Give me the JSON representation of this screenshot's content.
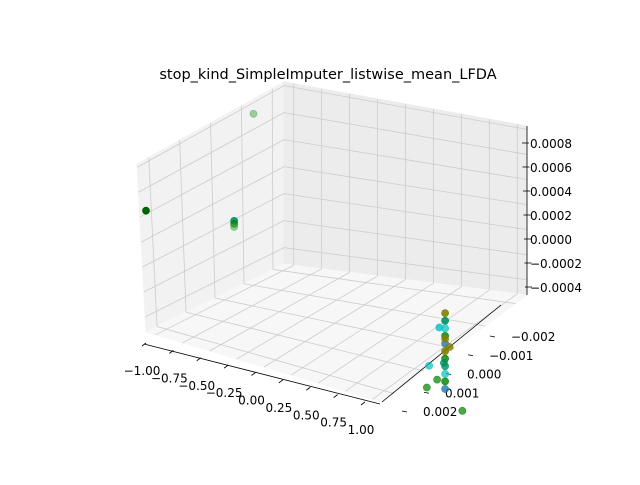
{
  "chart_data": {
    "type": "scatter",
    "projection": "3d",
    "title": "stop_kind_SimpleImputer_listwise_mean_LFDA",
    "xlabel": "",
    "ylabel": "",
    "zlabel": "",
    "grid": true,
    "legend": "none",
    "x_ticks": [
      "−1.00",
      "−0.75",
      "−0.50",
      "−0.25",
      "0.00",
      "0.25",
      "0.50",
      "0.75",
      "1.00"
    ],
    "y_ticks": [
      "−0.002",
      "−0.001",
      "0.000",
      "0.001",
      "0.002"
    ],
    "z_ticks": [
      "−0.0004",
      "−0.0002",
      "0.0000",
      "0.0002",
      "0.0004",
      "0.0006",
      "0.0008"
    ],
    "xlim": [
      -1.0,
      1.0
    ],
    "ylim": [
      -0.002,
      0.002
    ],
    "zlim": [
      -0.0004,
      0.0008
    ],
    "colors": {
      "pane_left": "#f2f2f2",
      "pane_right": "#ececec",
      "pane_floor": "#f7f7f7",
      "grid": "#cccccc",
      "dark_green": "#006400",
      "green": "#008000",
      "teal": "#009060",
      "cyan": "#00c0c0",
      "olive": "#808000",
      "blue": "#1f77b4"
    },
    "points": [
      {
        "x": -0.82,
        "y": -0.0005,
        "z": 0.0008,
        "color": "#008000",
        "alpha": 0.35
      },
      {
        "x": -1.0,
        "y": 0.002,
        "z": 0.0004,
        "color": "#006400",
        "alpha": 1.0
      },
      {
        "x": -0.75,
        "y": 0.0003,
        "z": 0.0002,
        "color": "#009060",
        "alpha": 0.9
      },
      {
        "x": -0.75,
        "y": 0.0003,
        "z": 0.00018,
        "color": "#008000",
        "alpha": 0.7
      },
      {
        "x": -0.75,
        "y": 0.0003,
        "z": 0.00016,
        "color": "#2ca02c",
        "alpha": 0.5
      },
      {
        "x": 0.95,
        "y": 0.0,
        "z": -5e-05,
        "color": "#808000",
        "alpha": 0.9
      },
      {
        "x": 0.95,
        "y": 0.0,
        "z": -0.0001,
        "color": "#009060",
        "alpha": 0.9
      },
      {
        "x": 0.95,
        "y": 0.0,
        "z": -0.00015,
        "color": "#00c0c0",
        "alpha": 0.7
      },
      {
        "x": 0.95,
        "y": 0.0,
        "z": -0.0002,
        "color": "#008000",
        "alpha": 0.8
      },
      {
        "x": 0.95,
        "y": 0.0,
        "z": -0.00025,
        "color": "#1f77b4",
        "alpha": 0.8
      },
      {
        "x": 0.95,
        "y": 0.0,
        "z": -0.0003,
        "color": "#808000",
        "alpha": 0.9
      },
      {
        "x": 0.95,
        "y": 0.0,
        "z": -0.00035,
        "color": "#008000",
        "alpha": 0.8
      },
      {
        "x": 0.95,
        "y": 0.0,
        "z": -0.0004,
        "color": "#009060",
        "alpha": 0.8
      },
      {
        "x": 0.95,
        "y": 0.0,
        "z": -0.00045,
        "color": "#00c0c0",
        "alpha": 0.7
      },
      {
        "x": 0.95,
        "y": 0.0,
        "z": -0.0005,
        "color": "#008000",
        "alpha": 0.8
      },
      {
        "x": 0.95,
        "y": 0.0,
        "z": -0.00055,
        "color": "#1f77b4",
        "alpha": 0.8
      },
      {
        "x": 0.96,
        "y": 0.0002,
        "z": -0.00012,
        "color": "#00c0c0",
        "alpha": 0.8
      },
      {
        "x": 0.93,
        "y": -0.0002,
        "z": -0.0003,
        "color": "#808000",
        "alpha": 0.8
      },
      {
        "x": 0.97,
        "y": 0.0003,
        "z": -0.00045,
        "color": "#008000",
        "alpha": 0.7
      },
      {
        "x": 0.99,
        "y": 0.0006,
        "z": -0.00032,
        "color": "#00c0c0",
        "alpha": 0.7
      },
      {
        "x": 1.0,
        "y": 0.0007,
        "z": -0.00045,
        "color": "#008000",
        "alpha": 0.7
      },
      {
        "x": 0.95,
        "y": -0.0005,
        "z": -0.00075,
        "color": "#008000",
        "alpha": 0.7
      },
      {
        "x": 0.94,
        "y": 0.0,
        "z": -0.00038,
        "color": "#009060",
        "alpha": 0.8
      },
      {
        "x": 0.95,
        "y": 0.0,
        "z": -0.00022,
        "color": "#808000",
        "alpha": 0.8
      }
    ]
  }
}
